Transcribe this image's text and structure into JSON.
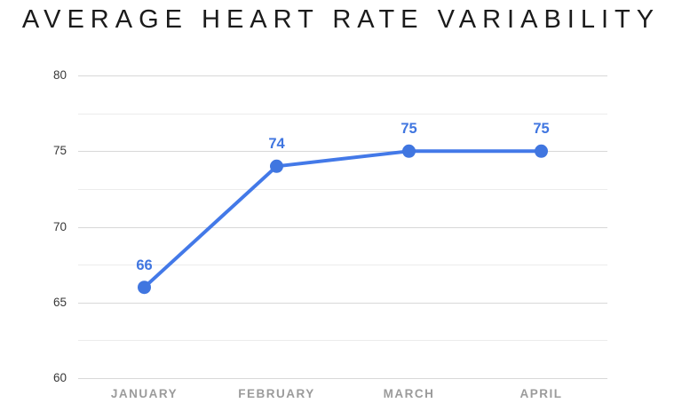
{
  "title": "AVERAGE HEART RATE VARIABILITY",
  "colors": {
    "line": "#4379e8",
    "point": "#4076e0",
    "point_label": "#4076e0",
    "grid_major": "#d8d8d8",
    "grid_minor": "#ececec",
    "y_axis_text": "#383838",
    "x_axis_text": "#9b9b9b",
    "background": "#ffffff",
    "title_text": "#1b1b1b"
  },
  "chart_data": {
    "type": "line",
    "title": "AVERAGE HEART RATE VARIABILITY",
    "categories": [
      "JANUARY",
      "FEBRUARY",
      "MARCH",
      "APRIL"
    ],
    "values": [
      66,
      74,
      75,
      75
    ],
    "point_labels": [
      "66",
      "74",
      "75",
      "75"
    ],
    "xlabel": "",
    "ylabel": "",
    "ylim": [
      60,
      80
    ],
    "yticks": [
      60,
      65,
      70,
      75,
      80
    ],
    "minor_grid_step": 2.5,
    "grid": "horizontal-only",
    "legend": "none",
    "line_width": 4,
    "point_radius": 7.5
  }
}
